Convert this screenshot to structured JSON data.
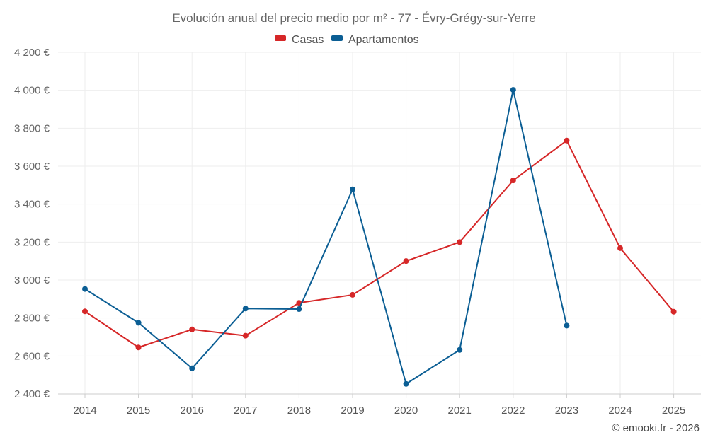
{
  "chart_data": {
    "type": "line",
    "title": "Evolución anual del precio medio por m² - 77 - Évry-Grégy-sur-Yerre",
    "categories": [
      "2014",
      "2015",
      "2016",
      "2017",
      "2018",
      "2019",
      "2020",
      "2021",
      "2022",
      "2023",
      "2024",
      "2025"
    ],
    "series": [
      {
        "name": "Casas",
        "color": "#d62728",
        "values": [
          2835,
          2645,
          2740,
          2707,
          2880,
          2922,
          3100,
          3200,
          3525,
          3735,
          3168,
          2833
        ]
      },
      {
        "name": "Apartamentos",
        "color": "#0b5e94",
        "values": [
          2953,
          2775,
          2535,
          2850,
          2847,
          3478,
          2453,
          2632,
          4002,
          2760,
          null,
          null
        ]
      }
    ],
    "ylim": [
      2400,
      4200
    ],
    "yticks": [
      2400,
      2600,
      2800,
      3000,
      3200,
      3400,
      3600,
      3800,
      4000,
      4200
    ],
    "ytick_labels": [
      "2 400 €",
      "2 600 €",
      "2 800 €",
      "3 000 €",
      "3 200 €",
      "3 400 €",
      "3 600 €",
      "3 800 €",
      "4 000 €",
      "4 200 €"
    ],
    "xlabel": "",
    "ylabel": "",
    "legend_position": "top-center",
    "grid": true
  },
  "copyright": "© emooki.fr - 2026"
}
